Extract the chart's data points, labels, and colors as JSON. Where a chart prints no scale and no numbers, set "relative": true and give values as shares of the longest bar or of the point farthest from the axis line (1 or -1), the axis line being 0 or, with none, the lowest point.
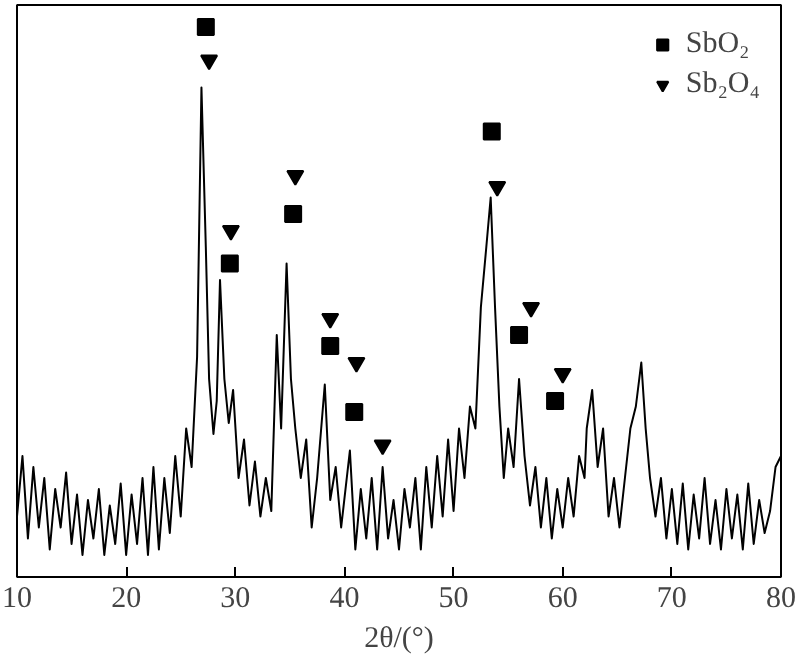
{
  "chart_data": {
    "type": "line",
    "xlabel": "2θ/(°)",
    "relative": true,
    "xlim": [
      10,
      80
    ],
    "xticks": [
      10,
      20,
      30,
      40,
      50,
      60,
      70,
      80
    ],
    "legend": "top right",
    "grid": false,
    "tick_labels": "x",
    "series": [
      {
        "color": "#000000",
        "marker": "none",
        "x": [
          10,
          10.5,
          11,
          11.5,
          12,
          12.5,
          13,
          13.5,
          14,
          14.5,
          15,
          15.5,
          16,
          16.5,
          17,
          17.5,
          18,
          18.5,
          19,
          19.5,
          20,
          20.5,
          21,
          21.5,
          22,
          22.5,
          23,
          23.5,
          24,
          24.5,
          25,
          25.5,
          26,
          26.5,
          26.9,
          27.3,
          27.6,
          28,
          28.3,
          28.6,
          29,
          29.4,
          29.8,
          30.3,
          30.8,
          31.3,
          31.8,
          32.3,
          32.8,
          33.3,
          33.8,
          34.2,
          34.7,
          35.1,
          35.5,
          36,
          36.5,
          37,
          37.5,
          38.2,
          38.7,
          39.2,
          39.7,
          40.5,
          41,
          41.5,
          42,
          42.5,
          43,
          43.5,
          44,
          44.5,
          45,
          45.5,
          46,
          46.5,
          47,
          47.5,
          48,
          48.5,
          49,
          49.5,
          50,
          50.5,
          51,
          51.5,
          52,
          52.5,
          53,
          53.4,
          53.8,
          54.2,
          54.6,
          55,
          55.5,
          56,
          56.5,
          57,
          57.5,
          58,
          58.5,
          59,
          59.5,
          60,
          60.5,
          61,
          61.5,
          62,
          62.2,
          62.7,
          63.2,
          63.7,
          64.2,
          64.7,
          65.2,
          65.7,
          66.2,
          66.7,
          67.2,
          67.6,
          68,
          68.5,
          69,
          69.5,
          70,
          70.5,
          71,
          71.5,
          72,
          72.5,
          73,
          73.5,
          74,
          74.5,
          75,
          75.5,
          76,
          76.5,
          77,
          77.5,
          78,
          78.5,
          79,
          79.5,
          80
        ],
        "values": [
          0.11,
          0.22,
          0.07,
          0.2,
          0.09,
          0.18,
          0.05,
          0.16,
          0.09,
          0.19,
          0.06,
          0.15,
          0.04,
          0.14,
          0.07,
          0.16,
          0.04,
          0.13,
          0.06,
          0.17,
          0.04,
          0.15,
          0.06,
          0.18,
          0.04,
          0.2,
          0.05,
          0.18,
          0.08,
          0.22,
          0.11,
          0.27,
          0.2,
          0.4,
          0.89,
          0.6,
          0.36,
          0.26,
          0.32,
          0.54,
          0.36,
          0.28,
          0.34,
          0.18,
          0.25,
          0.13,
          0.21,
          0.11,
          0.18,
          0.12,
          0.44,
          0.27,
          0.57,
          0.36,
          0.27,
          0.18,
          0.25,
          0.09,
          0.18,
          0.35,
          0.14,
          0.2,
          0.09,
          0.23,
          0.05,
          0.16,
          0.07,
          0.18,
          0.05,
          0.2,
          0.07,
          0.14,
          0.05,
          0.16,
          0.09,
          0.18,
          0.05,
          0.2,
          0.09,
          0.22,
          0.11,
          0.25,
          0.12,
          0.27,
          0.18,
          0.31,
          0.27,
          0.49,
          0.6,
          0.69,
          0.49,
          0.31,
          0.18,
          0.27,
          0.2,
          0.36,
          0.22,
          0.13,
          0.2,
          0.09,
          0.18,
          0.07,
          0.16,
          0.09,
          0.18,
          0.11,
          0.22,
          0.18,
          0.27,
          0.34,
          0.2,
          0.27,
          0.11,
          0.18,
          0.09,
          0.18,
          0.27,
          0.31,
          0.39,
          0.27,
          0.18,
          0.11,
          0.18,
          0.07,
          0.16,
          0.06,
          0.17,
          0.05,
          0.15,
          0.07,
          0.18,
          0.06,
          0.14,
          0.05,
          0.16,
          0.07,
          0.15,
          0.05,
          0.17,
          0.06,
          0.14,
          0.08,
          0.12,
          0.2,
          0.22
        ]
      },
      {
        "type": "scatter",
        "name": "SbO₂",
        "color": "#000000",
        "marker": "square",
        "x": [
          27.3,
          29.5,
          35.3,
          38.7,
          40.9,
          53.5,
          56.0,
          59.3
        ],
        "values": [
          1.0,
          0.57,
          0.66,
          0.42,
          0.3,
          0.81,
          0.44,
          0.32
        ]
      },
      {
        "type": "scatter",
        "name": "Sb₂O₄",
        "color": "#000000",
        "marker": "triangle",
        "x": [
          27.6,
          29.6,
          35.5,
          38.7,
          41.1,
          43.5,
          54.0,
          57.1,
          60.0
        ],
        "values": [
          0.94,
          0.63,
          0.73,
          0.47,
          0.39,
          0.24,
          0.71,
          0.49,
          0.37
        ]
      }
    ]
  }
}
